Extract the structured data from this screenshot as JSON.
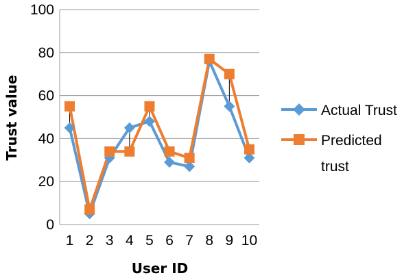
{
  "chart_data": {
    "type": "line",
    "title": "",
    "xlabel": "User ID",
    "ylabel": "Trust value",
    "categories": [
      "1",
      "2",
      "3",
      "4",
      "5",
      "6",
      "7",
      "8",
      "9",
      "10"
    ],
    "series": [
      {
        "name": "Actual Trust",
        "color": "#5b9bd5",
        "marker": "diamond",
        "values": [
          45,
          5,
          31,
          45,
          48,
          29,
          27,
          76,
          55,
          31
        ]
      },
      {
        "name": "Predicted trust",
        "color": "#ed7d31",
        "marker": "square",
        "values": [
          55,
          7,
          34,
          34,
          55,
          34,
          31,
          77,
          70,
          35
        ]
      }
    ],
    "ylim": [
      0,
      100
    ],
    "yticks": [
      0,
      20,
      40,
      60,
      80,
      100
    ],
    "grid": true,
    "error_lines": true,
    "legend_position": "right"
  }
}
